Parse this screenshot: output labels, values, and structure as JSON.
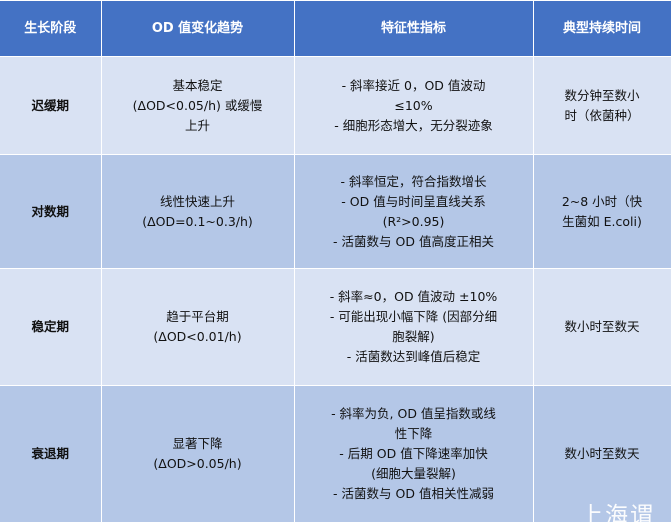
{
  "headers": [
    "生长阶段",
    "OD 值变化趋势",
    "特征性指标",
    "典型持续时间"
  ],
  "rows": [
    {
      "stage": [
        "迟缓期"
      ],
      "trend": [
        "基本稳定",
        "(ΔOD<0.05/h) 或缓慢",
        "上升"
      ],
      "indicators": [
        "- 斜率接近 0，OD 值波动",
        "≤10%",
        "- 细胞形态增大，无分裂迹象"
      ],
      "duration": [
        "数分钟至数小",
        "时（依菌种）"
      ]
    },
    {
      "stage": [
        "对数期"
      ],
      "trend": [
        "线性快速上升",
        "(ΔOD=0.1~0.3/h)"
      ],
      "indicators": [
        "- 斜率恒定，符合指数增长",
        "- OD 值与时间呈直线关系",
        "(R²>0.95)",
        "- 活菌数与 OD 值高度正相关"
      ],
      "duration": [
        "2~8 小时（快",
        "生菌如 E.coli)"
      ]
    },
    {
      "stage": [
        "稳定期"
      ],
      "trend": [
        "趋于平台期",
        "(ΔOD<0.01/h)"
      ],
      "indicators": [
        "- 斜率≈0，OD 值波动 ±10%",
        "- 可能出现小幅下降 (因部分细",
        "胞裂解)",
        "- 活菌数达到峰值后稳定"
      ],
      "duration": [
        "数小时至数天"
      ]
    },
    {
      "stage": [
        "衰退期"
      ],
      "trend": [
        "显著下降",
        "(ΔOD>0.05/h)"
      ],
      "indicators": [
        "- 斜率为负, OD 值呈指数或线",
        "性下降",
        "- 后期 OD 值下降速率加快",
        "(细胞大量裂解)",
        "- 活菌数与 OD 值相关性减弱"
      ],
      "duration": [
        "数小时至数天"
      ]
    }
  ],
  "watermark": "上海谓",
  "colors": {
    "header": "#4472c4",
    "row_light": "#d9e2f3",
    "row_dark": "#b4c7e7"
  }
}
